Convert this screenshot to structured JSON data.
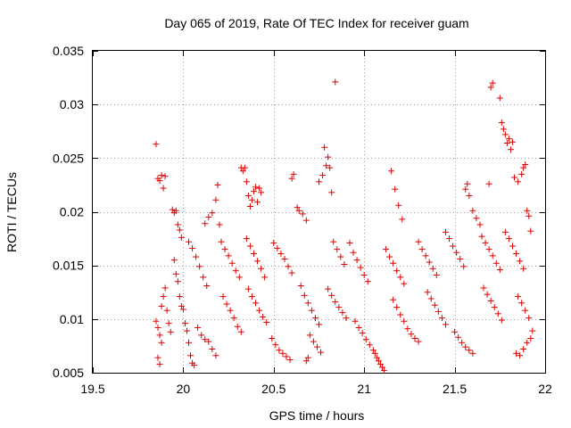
{
  "chart_data": {
    "type": "scatter",
    "title": "Day 065 of 2019, Rate Of TEC Index for receiver guam",
    "xlabel": "GPS time / hours",
    "ylabel": "ROTI / TECUs",
    "xlim": [
      19.5,
      22
    ],
    "ylim": [
      0.005,
      0.035
    ],
    "xticks": [
      19.5,
      20,
      20.5,
      21,
      21.5,
      22
    ],
    "xtick_labels": [
      "19.5",
      "20",
      "20.5",
      "21",
      "21.5",
      "22"
    ],
    "yticks": [
      0.005,
      0.01,
      0.015,
      0.02,
      0.025,
      0.03,
      0.035
    ],
    "ytick_labels": [
      "0.005",
      "0.01",
      "0.015",
      "0.02",
      "0.025",
      "0.03",
      "0.035"
    ],
    "grid": true,
    "marker": "plus",
    "color": "#e00000",
    "series": [
      {
        "name": "ROTI",
        "points": [
          [
            19.85,
            0.0263
          ],
          [
            19.86,
            0.0231
          ],
          [
            19.87,
            0.0229
          ],
          [
            19.88,
            0.0234
          ],
          [
            19.89,
            0.0222
          ],
          [
            19.9,
            0.0233
          ],
          [
            19.85,
            0.0098
          ],
          [
            19.86,
            0.0092
          ],
          [
            19.87,
            0.0085
          ],
          [
            19.88,
            0.0078
          ],
          [
            19.86,
            0.0064
          ],
          [
            19.87,
            0.0058
          ],
          [
            19.88,
            0.0112
          ],
          [
            19.89,
            0.0121
          ],
          [
            19.9,
            0.0129
          ],
          [
            19.91,
            0.0108
          ],
          [
            19.92,
            0.0096
          ],
          [
            19.93,
            0.0088
          ],
          [
            19.94,
            0.0202
          ],
          [
            19.95,
            0.0199
          ],
          [
            19.96,
            0.0201
          ],
          [
            19.97,
            0.0188
          ],
          [
            19.98,
            0.0183
          ],
          [
            19.99,
            0.0176
          ],
          [
            19.95,
            0.0155
          ],
          [
            19.96,
            0.0142
          ],
          [
            19.97,
            0.0135
          ],
          [
            19.98,
            0.0121
          ],
          [
            19.99,
            0.0112
          ],
          [
            20.0,
            0.0109
          ],
          [
            20.01,
            0.0096
          ],
          [
            20.02,
            0.0089
          ],
          [
            20.03,
            0.0078
          ],
          [
            20.04,
            0.0066
          ],
          [
            20.05,
            0.0059
          ],
          [
            20.06,
            0.0057
          ],
          [
            20.03,
            0.0172
          ],
          [
            20.05,
            0.0166
          ],
          [
            20.07,
            0.0158
          ],
          [
            20.09,
            0.0149
          ],
          [
            20.11,
            0.0139
          ],
          [
            20.13,
            0.0131
          ],
          [
            20.08,
            0.0092
          ],
          [
            20.1,
            0.0085
          ],
          [
            20.12,
            0.0081
          ],
          [
            20.14,
            0.0079
          ],
          [
            20.16,
            0.0072
          ],
          [
            20.18,
            0.0066
          ],
          [
            20.12,
            0.0189
          ],
          [
            20.14,
            0.0195
          ],
          [
            20.16,
            0.0199
          ],
          [
            20.18,
            0.0211
          ],
          [
            20.19,
            0.0225
          ],
          [
            20.2,
            0.0188
          ],
          [
            20.21,
            0.0172
          ],
          [
            20.23,
            0.0165
          ],
          [
            20.25,
            0.0159
          ],
          [
            20.27,
            0.0152
          ],
          [
            20.29,
            0.0145
          ],
          [
            20.31,
            0.0139
          ],
          [
            20.22,
            0.0121
          ],
          [
            20.24,
            0.0114
          ],
          [
            20.26,
            0.0108
          ],
          [
            20.28,
            0.0101
          ],
          [
            20.3,
            0.0093
          ],
          [
            20.32,
            0.0088
          ],
          [
            20.32,
            0.0241
          ],
          [
            20.33,
            0.0238
          ],
          [
            20.34,
            0.0241
          ],
          [
            20.35,
            0.0228
          ],
          [
            20.36,
            0.0215
          ],
          [
            20.37,
            0.0205
          ],
          [
            20.38,
            0.0211
          ],
          [
            20.39,
            0.0219
          ],
          [
            20.4,
            0.0223
          ],
          [
            20.41,
            0.0209
          ],
          [
            20.42,
            0.0222
          ],
          [
            20.43,
            0.0218
          ],
          [
            20.35,
            0.0175
          ],
          [
            20.37,
            0.0168
          ],
          [
            20.39,
            0.0161
          ],
          [
            20.41,
            0.0154
          ],
          [
            20.43,
            0.0147
          ],
          [
            20.45,
            0.0139
          ],
          [
            20.36,
            0.0128
          ],
          [
            20.38,
            0.0121
          ],
          [
            20.4,
            0.0115
          ],
          [
            20.42,
            0.0108
          ],
          [
            20.44,
            0.0102
          ],
          [
            20.46,
            0.0097
          ],
          [
            20.5,
            0.0171
          ],
          [
            20.52,
            0.0166
          ],
          [
            20.54,
            0.0161
          ],
          [
            20.56,
            0.0156
          ],
          [
            20.58,
            0.0149
          ],
          [
            20.6,
            0.0143
          ],
          [
            20.49,
            0.0082
          ],
          [
            20.51,
            0.0076
          ],
          [
            20.53,
            0.0071
          ],
          [
            20.55,
            0.0068
          ],
          [
            20.57,
            0.0065
          ],
          [
            20.59,
            0.0062
          ],
          [
            20.6,
            0.0231
          ],
          [
            20.61,
            0.0235
          ],
          [
            20.63,
            0.0204
          ],
          [
            20.64,
            0.0201
          ],
          [
            20.66,
            0.0198
          ],
          [
            20.68,
            0.0192
          ],
          [
            20.65,
            0.0131
          ],
          [
            20.67,
            0.0122
          ],
          [
            20.69,
            0.0115
          ],
          [
            20.71,
            0.0108
          ],
          [
            20.73,
            0.0101
          ],
          [
            20.75,
            0.0095
          ],
          [
            20.7,
            0.0085
          ],
          [
            20.72,
            0.0079
          ],
          [
            20.74,
            0.0074
          ],
          [
            20.76,
            0.0069
          ],
          [
            20.68,
            0.0061
          ],
          [
            20.69,
            0.0064
          ],
          [
            20.75,
            0.0228
          ],
          [
            20.77,
            0.0234
          ],
          [
            20.79,
            0.0243
          ],
          [
            20.8,
            0.0251
          ],
          [
            20.78,
            0.026
          ],
          [
            20.81,
            0.0241
          ],
          [
            20.82,
            0.0218
          ],
          [
            20.84,
            0.0321
          ],
          [
            20.83,
            0.0172
          ],
          [
            20.85,
            0.0165
          ],
          [
            20.87,
            0.0158
          ],
          [
            20.89,
            0.0151
          ],
          [
            20.8,
            0.0128
          ],
          [
            20.82,
            0.0122
          ],
          [
            20.84,
            0.0116
          ],
          [
            20.86,
            0.0111
          ],
          [
            20.88,
            0.0106
          ],
          [
            20.9,
            0.0101
          ],
          [
            20.92,
            0.0171
          ],
          [
            20.94,
            0.0162
          ],
          [
            20.96,
            0.0155
          ],
          [
            20.98,
            0.0148
          ],
          [
            21.0,
            0.0141
          ],
          [
            21.02,
            0.0135
          ],
          [
            20.95,
            0.0098
          ],
          [
            20.97,
            0.0092
          ],
          [
            20.99,
            0.0087
          ],
          [
            21.01,
            0.0081
          ],
          [
            21.03,
            0.0076
          ],
          [
            21.05,
            0.0071
          ],
          [
            21.06,
            0.0068
          ],
          [
            21.07,
            0.0064
          ],
          [
            21.08,
            0.0061
          ],
          [
            21.09,
            0.0058
          ],
          [
            21.1,
            0.0055
          ],
          [
            21.11,
            0.0052
          ],
          [
            21.12,
            0.0165
          ],
          [
            21.14,
            0.0158
          ],
          [
            21.16,
            0.0152
          ],
          [
            21.18,
            0.0145
          ],
          [
            21.2,
            0.0139
          ],
          [
            21.22,
            0.0133
          ],
          [
            21.15,
            0.0238
          ],
          [
            21.17,
            0.0221
          ],
          [
            21.19,
            0.0206
          ],
          [
            21.21,
            0.0193
          ],
          [
            21.16,
            0.0118
          ],
          [
            21.18,
            0.0111
          ],
          [
            21.2,
            0.0104
          ],
          [
            21.22,
            0.0098
          ],
          [
            21.24,
            0.0091
          ],
          [
            21.26,
            0.0086
          ],
          [
            21.28,
            0.0082
          ],
          [
            21.3,
            0.0079
          ],
          [
            21.3,
            0.0172
          ],
          [
            21.32,
            0.0165
          ],
          [
            21.34,
            0.0159
          ],
          [
            21.36,
            0.0153
          ],
          [
            21.38,
            0.0147
          ],
          [
            21.4,
            0.0141
          ],
          [
            21.35,
            0.0125
          ],
          [
            21.37,
            0.0119
          ],
          [
            21.39,
            0.0113
          ],
          [
            21.41,
            0.0107
          ],
          [
            21.43,
            0.0101
          ],
          [
            21.45,
            0.0095
          ],
          [
            21.45,
            0.0181
          ],
          [
            21.47,
            0.0175
          ],
          [
            21.49,
            0.0168
          ],
          [
            21.51,
            0.0162
          ],
          [
            21.53,
            0.0156
          ],
          [
            21.55,
            0.0149
          ],
          [
            21.5,
            0.0088
          ],
          [
            21.52,
            0.0083
          ],
          [
            21.54,
            0.0078
          ],
          [
            21.56,
            0.0074
          ],
          [
            21.58,
            0.0071
          ],
          [
            21.6,
            0.0068
          ],
          [
            21.56,
            0.0221
          ],
          [
            21.57,
            0.0226
          ],
          [
            21.58,
            0.0215
          ],
          [
            21.6,
            0.0201
          ],
          [
            21.62,
            0.0194
          ],
          [
            21.64,
            0.0188
          ],
          [
            21.65,
            0.0177
          ],
          [
            21.67,
            0.0171
          ],
          [
            21.69,
            0.0165
          ],
          [
            21.71,
            0.0159
          ],
          [
            21.73,
            0.0152
          ],
          [
            21.75,
            0.0146
          ],
          [
            21.66,
            0.0129
          ],
          [
            21.68,
            0.0123
          ],
          [
            21.7,
            0.0117
          ],
          [
            21.72,
            0.0111
          ],
          [
            21.74,
            0.0105
          ],
          [
            21.76,
            0.0099
          ],
          [
            21.69,
            0.0226
          ],
          [
            21.7,
            0.0316
          ],
          [
            21.71,
            0.032
          ],
          [
            21.75,
            0.0306
          ],
          [
            21.76,
            0.0283
          ],
          [
            21.77,
            0.0277
          ],
          [
            21.78,
            0.0272
          ],
          [
            21.79,
            0.0264
          ],
          [
            21.8,
            0.0268
          ],
          [
            21.81,
            0.0258
          ],
          [
            21.82,
            0.0265
          ],
          [
            21.78,
            0.0181
          ],
          [
            21.8,
            0.0175
          ],
          [
            21.82,
            0.0168
          ],
          [
            21.84,
            0.0161
          ],
          [
            21.86,
            0.0154
          ],
          [
            21.88,
            0.0147
          ],
          [
            21.83,
            0.0232
          ],
          [
            21.85,
            0.0228
          ],
          [
            21.87,
            0.0235
          ],
          [
            21.88,
            0.0241
          ],
          [
            21.89,
            0.0244
          ],
          [
            21.9,
            0.0201
          ],
          [
            21.91,
            0.0196
          ],
          [
            21.92,
            0.0182
          ],
          [
            21.85,
            0.0121
          ],
          [
            21.87,
            0.0115
          ],
          [
            21.89,
            0.0108
          ],
          [
            21.91,
            0.0101
          ],
          [
            21.84,
            0.0068
          ],
          [
            21.86,
            0.0066
          ],
          [
            21.88,
            0.0072
          ],
          [
            21.9,
            0.0078
          ],
          [
            21.92,
            0.0082
          ],
          [
            21.93,
            0.0089
          ]
        ]
      }
    ]
  }
}
